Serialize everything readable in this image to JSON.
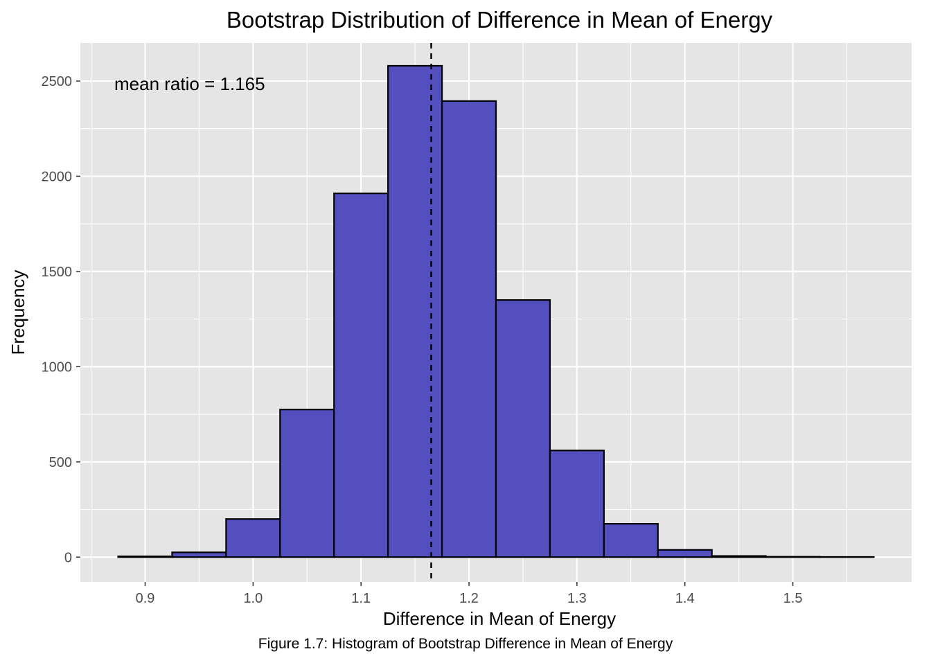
{
  "chart_data": {
    "type": "bar",
    "title": "Bootstrap Distribution of Difference in Mean of Energy",
    "xlabel": "Difference in Mean of Energy",
    "ylabel": "Frequency",
    "bin_width": 0.05,
    "bins": [
      {
        "start": 0.875,
        "end": 0.925,
        "count": 4
      },
      {
        "start": 0.925,
        "end": 0.975,
        "count": 25
      },
      {
        "start": 0.975,
        "end": 1.025,
        "count": 200
      },
      {
        "start": 1.025,
        "end": 1.075,
        "count": 775
      },
      {
        "start": 1.075,
        "end": 1.125,
        "count": 1910
      },
      {
        "start": 1.125,
        "end": 1.175,
        "count": 2580
      },
      {
        "start": 1.175,
        "end": 1.225,
        "count": 2395
      },
      {
        "start": 1.225,
        "end": 1.275,
        "count": 1350
      },
      {
        "start": 1.275,
        "end": 1.325,
        "count": 560
      },
      {
        "start": 1.325,
        "end": 1.375,
        "count": 175
      },
      {
        "start": 1.375,
        "end": 1.425,
        "count": 38
      },
      {
        "start": 1.425,
        "end": 1.475,
        "count": 6
      },
      {
        "start": 1.475,
        "end": 1.525,
        "count": 2
      },
      {
        "start": 1.525,
        "end": 1.575,
        "count": 1
      }
    ],
    "mean_line": 1.165,
    "annotation": "mean ratio = 1.165",
    "xticks": [
      "0.9",
      "1.0",
      "1.1",
      "1.2",
      "1.3",
      "1.4",
      "1.5"
    ],
    "yticks": [
      "0",
      "500",
      "1000",
      "1500",
      "2000",
      "2500"
    ],
    "xlim": [
      0.84,
      1.61
    ],
    "ylim": [
      -130,
      2700
    ],
    "grid": true,
    "colors": {
      "fill": "#534FBF",
      "outline": "#000000",
      "panel": "#E5E5E5",
      "grid": "#FFFFFF"
    }
  },
  "caption": "Figure 1.7: Histogram of Bootstrap Difference in Mean of Energy"
}
